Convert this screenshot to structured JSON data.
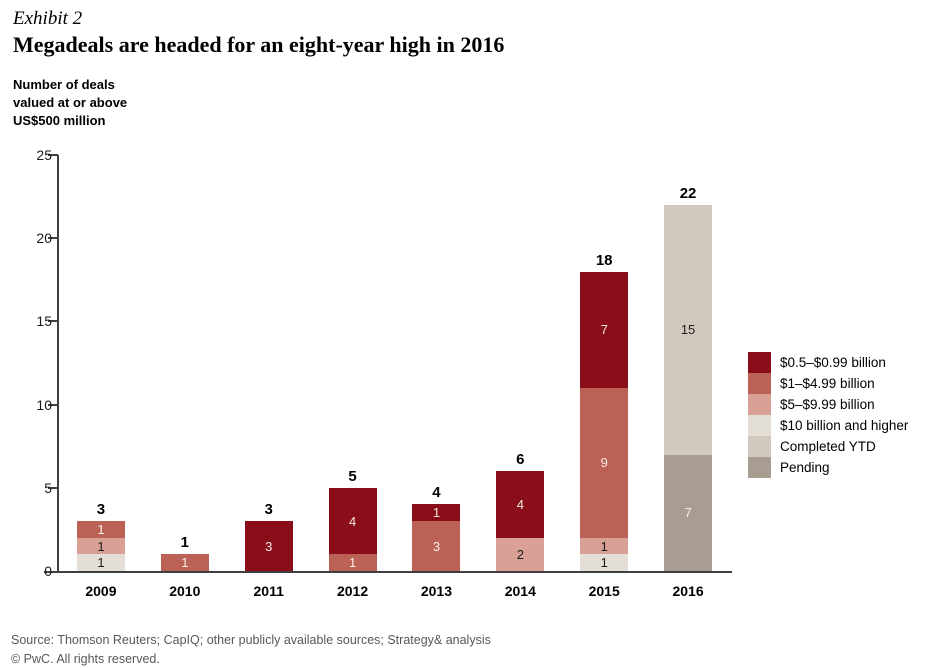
{
  "header": {
    "exhibit_label": "Exhibit 2",
    "title": "Megadeals are headed for an eight-year high in 2016"
  },
  "axis_note": "Number of deals\nvalued at or above\nUS$500 million",
  "footer": {
    "source_line": "Source: Thomson Reuters; CapIQ; other publicly available sources; Strategy& analysis",
    "copyright_line": "© PwC. All rights reserved."
  },
  "colors": {
    "axis": "#3f3f3f",
    "text": "#000000",
    "source_text": "#58585a"
  },
  "chart_data": {
    "type": "bar",
    "stacked": true,
    "title": "Megadeals are headed for an eight-year high in 2016",
    "ylabel": "Number of deals valued at or above US$500 million",
    "xlabel": "",
    "ylim": [
      0,
      25
    ],
    "yticks": [
      0,
      5,
      10,
      15,
      20,
      25
    ],
    "grid": false,
    "legend_position": "right",
    "categories": [
      "2009",
      "2010",
      "2011",
      "2012",
      "2013",
      "2014",
      "2015",
      "2016"
    ],
    "series": [
      {
        "name": "$0.5–$0.99 billion",
        "color": "#8a0e19",
        "label_color": "#f3e9e3",
        "values": [
          0,
          0,
          3,
          4,
          1,
          4,
          7,
          0
        ]
      },
      {
        "name": "$1–$4.99 billion",
        "color": "#bc6156",
        "label_color": "#f7efe9",
        "values": [
          1,
          1,
          0,
          1,
          3,
          0,
          9,
          0
        ]
      },
      {
        "name": "$5–$9.99 billion",
        "color": "#d9a096",
        "label_color": "#1a1a1a",
        "values": [
          1,
          0,
          0,
          0,
          0,
          2,
          1,
          0
        ]
      },
      {
        "name": "$10 billion and higher",
        "color": "#e3dfd7",
        "label_color": "#1a1a1a",
        "values": [
          1,
          0,
          0,
          0,
          0,
          0,
          1,
          0
        ]
      },
      {
        "name": "Completed YTD",
        "color": "#d1c9be",
        "label_color": "#1a1a1a",
        "values": [
          0,
          0,
          0,
          0,
          0,
          0,
          0,
          15
        ]
      },
      {
        "name": "Pending",
        "color": "#a99c91",
        "label_color": "#f4f0ea",
        "values": [
          0,
          0,
          0,
          0,
          0,
          0,
          0,
          7
        ]
      }
    ],
    "totals": [
      3,
      1,
      3,
      5,
      4,
      6,
      18,
      22
    ]
  }
}
